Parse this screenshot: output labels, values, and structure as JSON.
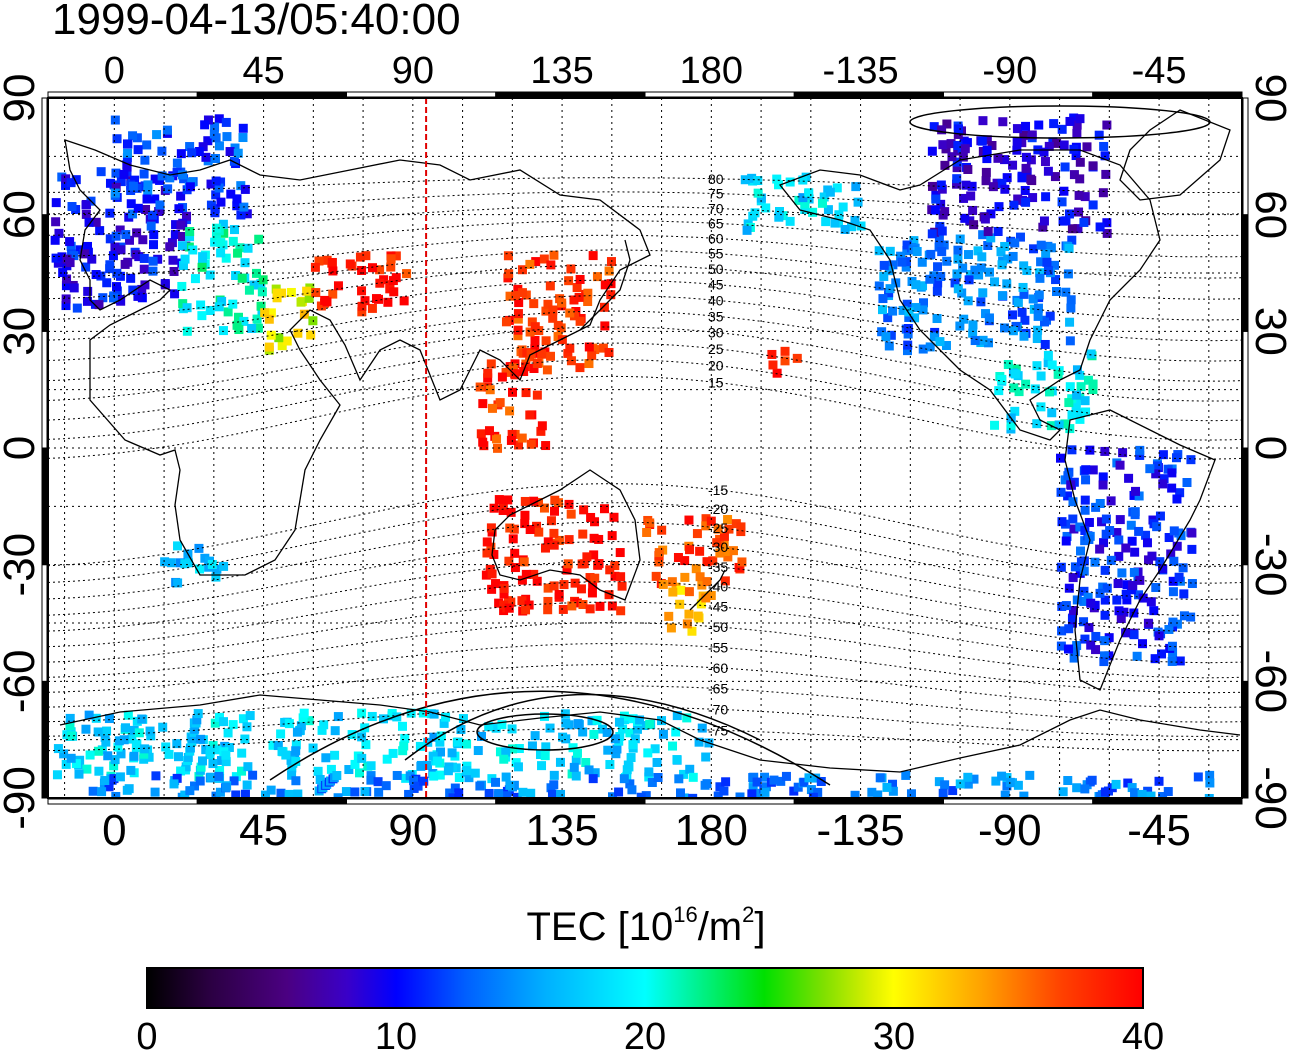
{
  "title": "1999-04-13/05:40:00",
  "map": {
    "lon_range": [
      -20,
      340
    ],
    "lat_range": [
      -90,
      90
    ],
    "lon_tick_labels": [
      "0",
      "45",
      "90",
      "135",
      "180",
      "-135",
      "-90",
      "-45"
    ],
    "lon_tick_values": [
      0,
      45,
      90,
      135,
      180,
      225,
      270,
      315
    ],
    "lat_tick_labels": [
      "90",
      "60",
      "30",
      "0",
      "-30",
      "-60",
      "-90"
    ],
    "lat_tick_values": [
      90,
      60,
      30,
      0,
      -30,
      -60,
      -90
    ],
    "terminator_lon": 94,
    "terminator_color": "#e00000",
    "magnetic_contour_labels": [
      "80",
      "75",
      "70",
      "65",
      "60",
      "55",
      "50",
      "45",
      "40",
      "35",
      "30",
      "25",
      "20",
      "15",
      "-15",
      "-20",
      "-25",
      "-30",
      "-35",
      "-40",
      "-45",
      "-50",
      "-55",
      "-60",
      "-65",
      "-70",
      "-75"
    ],
    "tec_clusters": [
      {
        "region": "europe",
        "lon": [
          -18,
          22
        ],
        "lat": [
          36,
          72
        ],
        "tec": 10
      },
      {
        "region": "scandinavia",
        "lon": [
          0,
          40
        ],
        "lat": [
          60,
          85
        ],
        "tec": 12
      },
      {
        "region": "east-europe",
        "lon": [
          20,
          45
        ],
        "lat": [
          30,
          58
        ],
        "tec": 20
      },
      {
        "region": "middle-east",
        "lon": [
          45,
          60
        ],
        "lat": [
          25,
          42
        ],
        "tec": 30
      },
      {
        "region": "central-asia",
        "lon": [
          60,
          90
        ],
        "lat": [
          35,
          50
        ],
        "tec": 39
      },
      {
        "region": "east-asia",
        "lon": [
          118,
          150
        ],
        "lat": [
          20,
          50
        ],
        "tec": 38
      },
      {
        "region": "se-asia",
        "lon": [
          110,
          130
        ],
        "lat": [
          0,
          25
        ],
        "tec": 38
      },
      {
        "region": "australia",
        "lon": [
          112,
          153
        ],
        "lat": [
          -42,
          -12
        ],
        "tec": 39
      },
      {
        "region": "new-zealand",
        "lon": [
          165,
          180
        ],
        "lat": [
          -47,
          -34
        ],
        "tec": 33
      },
      {
        "region": "pacific-sw",
        "lon": [
          160,
          190
        ],
        "lat": [
          -35,
          -18
        ],
        "tec": 37
      },
      {
        "region": "hawaii",
        "lon": [
          198,
          206
        ],
        "lat": [
          18,
          25
        ],
        "tec": 39
      },
      {
        "region": "alaska",
        "lon": [
          190,
          225
        ],
        "lat": [
          55,
          70
        ],
        "tec": 18
      },
      {
        "region": "north-america",
        "lon": [
          230,
          290
        ],
        "lat": [
          25,
          55
        ],
        "tec": 14
      },
      {
        "region": "canada",
        "lon": [
          245,
          300
        ],
        "lat": [
          55,
          85
        ],
        "tec": 9
      },
      {
        "region": "central-america",
        "lon": [
          265,
          295
        ],
        "lat": [
          5,
          25
        ],
        "tec": 19
      },
      {
        "region": "south-america",
        "lon": [
          285,
          325
        ],
        "lat": [
          -55,
          0
        ],
        "tec": 11
      },
      {
        "region": "south-africa",
        "lon": [
          15,
          35
        ],
        "lat": [
          -35,
          -25
        ],
        "tec": 17
      },
      {
        "region": "antarctica-coast",
        "lon": [
          -18,
          180
        ],
        "lat": [
          -85,
          -68
        ],
        "tec": 18
      },
      {
        "region": "antarctica-pole",
        "lon": [
          -18,
          335
        ],
        "lat": [
          -90,
          -84
        ],
        "tec": 14
      }
    ]
  },
  "colorbar": {
    "title": "TEC  [10",
    "title_sup1": "16",
    "title_mid": "/m",
    "title_sup2": "2",
    "title_end": "]",
    "min": 0,
    "max": 40,
    "tick_labels": [
      "0",
      "10",
      "20",
      "30",
      "40"
    ],
    "tick_values": [
      0,
      10,
      20,
      30,
      40
    ]
  }
}
